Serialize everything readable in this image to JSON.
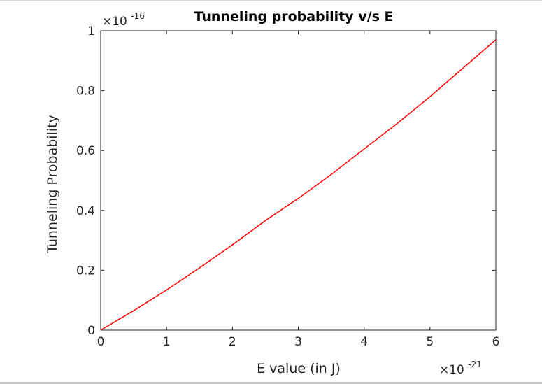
{
  "chart_data": {
    "type": "line",
    "title": "Tunneling probability v/s E",
    "xlabel": "E value (in J)",
    "ylabel": "Tunneling Probability",
    "x_multiplier": {
      "base": "×10",
      "exponent": "-21"
    },
    "y_multiplier": {
      "base": "×10",
      "exponent": "-16"
    },
    "xlim": [
      0,
      6
    ],
    "ylim": [
      0,
      1
    ],
    "x_ticks": [
      "0",
      "1",
      "2",
      "3",
      "4",
      "5",
      "6"
    ],
    "y_ticks": [
      "0",
      "0.2",
      "0.4",
      "0.6",
      "0.8",
      "1"
    ],
    "grid": false,
    "series": [
      {
        "color": "#ff0000",
        "x": [
          0,
          0.5,
          1,
          1.5,
          2,
          2.5,
          3,
          3.5,
          4,
          4.5,
          5,
          5.5,
          6
        ],
        "y": [
          0,
          0.065,
          0.134,
          0.208,
          0.285,
          0.366,
          0.44,
          0.52,
          0.605,
          0.69,
          0.78,
          0.875,
          0.97
        ]
      }
    ]
  }
}
